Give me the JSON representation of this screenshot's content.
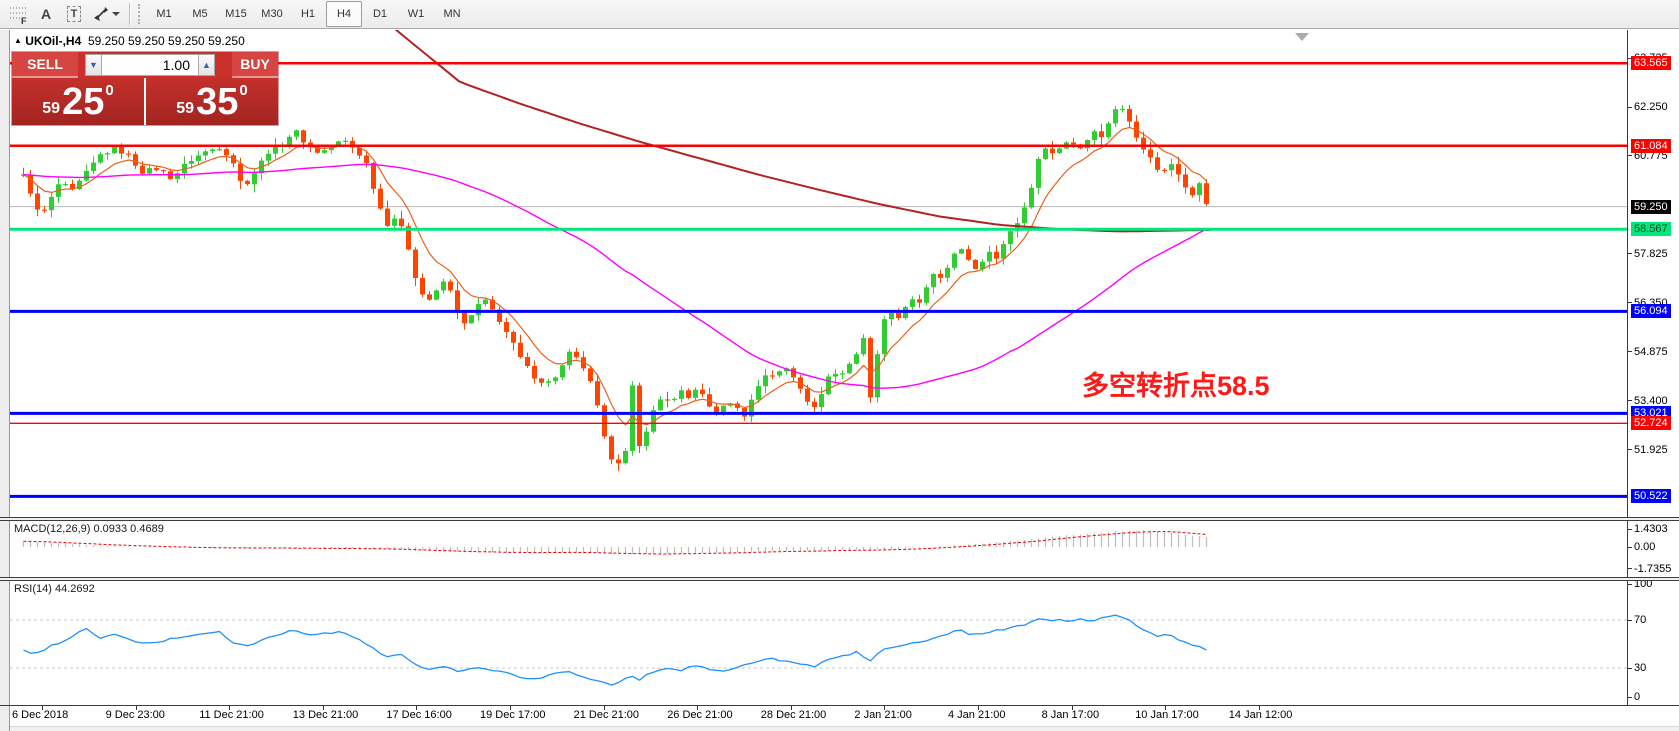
{
  "toolbar": {
    "tools": [
      {
        "name": "fibonacci-tool",
        "glyph": "F"
      },
      {
        "name": "text-tool",
        "glyph": "A"
      },
      {
        "name": "label-tool",
        "glyph": "T"
      },
      {
        "name": "arrows-tool",
        "glyph": "arrow"
      }
    ],
    "timeframes": [
      "M1",
      "M5",
      "M15",
      "M30",
      "H1",
      "H4",
      "D1",
      "W1",
      "MN"
    ],
    "active_timeframe": "H4"
  },
  "chart": {
    "symbol": "UKOil-,H4",
    "quotes": "59.250 59.250 59.250 59.250",
    "annotation": "多空转折点58.5",
    "annotation_color": "#FF1A1A"
  },
  "trade_panel": {
    "sell_label": "SELL",
    "buy_label": "BUY",
    "volume": "1.00",
    "sell_price": {
      "small": "59",
      "big": "25",
      "sup": "0"
    },
    "buy_price": {
      "small": "59",
      "big": "35",
      "sup": "0"
    }
  },
  "price_axis": {
    "ticks": [
      {
        "label": "63.725",
        "price": 63.725
      },
      {
        "label": "62.250",
        "price": 62.25
      },
      {
        "label": "60.775",
        "price": 60.775
      },
      {
        "label": "57.825",
        "price": 57.825
      },
      {
        "label": "56.350",
        "price": 56.35
      },
      {
        "label": "54.875",
        "price": 54.875
      },
      {
        "label": "53.400",
        "price": 53.4
      },
      {
        "label": "51.925",
        "price": 51.925
      }
    ],
    "badges": [
      {
        "label": "63.565",
        "price": 63.565,
        "bg": "#FF0000",
        "fg": "#FFFFFF"
      },
      {
        "label": "61.084",
        "price": 61.084,
        "bg": "#FF0000",
        "fg": "#FFFFFF"
      },
      {
        "label": "59.250",
        "price": 59.25,
        "bg": "#000000",
        "fg": "#FFFFFF"
      },
      {
        "label": "58.567",
        "price": 58.567,
        "bg": "#00E87C",
        "fg": "#143D28"
      },
      {
        "label": "56.094",
        "price": 56.094,
        "bg": "#0000FF",
        "fg": "#FFFFFF"
      },
      {
        "label": "53.021",
        "price": 53.021,
        "bg": "#0000FF",
        "fg": "#FFFFFF"
      },
      {
        "label": "52.724",
        "price": 52.724,
        "bg": "#FF0000",
        "fg": "#FFFFFF"
      },
      {
        "label": "50.522",
        "price": 50.522,
        "bg": "#0000FF",
        "fg": "#FFFFFF"
      }
    ]
  },
  "macd_panel": {
    "header": "MACD(12,26,9) 0.0933 0.4689",
    "scale": [
      {
        "label": "1.4303",
        "value": 1.4303
      },
      {
        "label": "0.00",
        "value": 0
      },
      {
        "label": "-1.7355",
        "value": -1.7355
      }
    ]
  },
  "rsi_panel": {
    "header": "RSI(14) 44.2692",
    "scale": [
      {
        "label": "100",
        "value": 100
      },
      {
        "label": "70",
        "value": 70
      },
      {
        "label": "30",
        "value": 30
      },
      {
        "label": "0",
        "value": 0
      }
    ]
  },
  "date_axis": {
    "labels": [
      "6 Dec 2018",
      "9 Dec 23:00",
      "11 Dec 21:00",
      "13 Dec 21:00",
      "17 Dec 16:00",
      "19 Dec 17:00",
      "21 Dec 21:00",
      "26 Dec 21:00",
      "28 Dec 21:00",
      "2 Jan 21:00",
      "4 Jan 21:00",
      "8 Jan 17:00",
      "10 Jan 17:00",
      "14 Jan 12:00"
    ]
  },
  "chart_data": {
    "type": "candlestick",
    "symbol": "UKOil-",
    "timeframe": "H4",
    "last_price": 59.25,
    "visible_price_range": [
      50.45,
      63.725
    ],
    "up_color": "#32CD32",
    "down_color": "#FF4500",
    "current_price_line": {
      "price": 59.25,
      "color": "#B8B8B8"
    },
    "hlines": [
      {
        "price": 63.565,
        "color": "#FF0000",
        "width": 2.5
      },
      {
        "price": 61.084,
        "color": "#FF0000",
        "width": 2.5
      },
      {
        "price": 58.567,
        "color": "#00E87C",
        "width": 3
      },
      {
        "price": 56.094,
        "color": "#0000FF",
        "width": 3
      },
      {
        "price": 53.021,
        "color": "#0000FF",
        "width": 3
      },
      {
        "price": 52.724,
        "color": "#FF0000",
        "width": 1.3
      },
      {
        "price": 50.522,
        "color": "#0000FF",
        "width": 3
      }
    ],
    "close_path_anchors": [
      [
        10,
        60.4
      ],
      [
        22,
        59.6
      ],
      [
        30,
        58.9
      ],
      [
        38,
        59.3
      ],
      [
        50,
        60.0
      ],
      [
        62,
        59.7
      ],
      [
        75,
        60.2
      ],
      [
        90,
        60.8
      ],
      [
        105,
        61.0
      ],
      [
        118,
        60.8
      ],
      [
        132,
        60.3
      ],
      [
        148,
        60.4
      ],
      [
        162,
        60.1
      ],
      [
        178,
        60.6
      ],
      [
        195,
        60.9
      ],
      [
        210,
        61.05
      ],
      [
        222,
        60.7
      ],
      [
        233,
        59.8
      ],
      [
        245,
        60.3
      ],
      [
        258,
        60.9
      ],
      [
        272,
        61.15
      ],
      [
        285,
        61.55
      ],
      [
        297,
        61.1
      ],
      [
        310,
        60.85
      ],
      [
        322,
        61.1
      ],
      [
        334,
        61.25
      ],
      [
        346,
        60.95
      ],
      [
        356,
        60.6
      ],
      [
        366,
        59.6
      ],
      [
        376,
        58.7
      ],
      [
        386,
        58.95
      ],
      [
        396,
        58.3
      ],
      [
        406,
        57.1
      ],
      [
        416,
        56.35
      ],
      [
        426,
        56.65
      ],
      [
        436,
        57.1
      ],
      [
        446,
        56.2
      ],
      [
        456,
        55.6
      ],
      [
        466,
        56.25
      ],
      [
        476,
        56.4
      ],
      [
        488,
        55.9
      ],
      [
        500,
        55.3
      ],
      [
        512,
        54.6
      ],
      [
        524,
        54.15
      ],
      [
        536,
        53.9
      ],
      [
        548,
        54.2
      ],
      [
        560,
        54.85
      ],
      [
        572,
        54.5
      ],
      [
        584,
        53.7
      ],
      [
        594,
        52.3
      ],
      [
        604,
        51.5
      ],
      [
        612,
        51.65
      ],
      [
        618,
        52.0
      ],
      [
        623,
        54.0
      ],
      [
        628,
        51.9
      ],
      [
        636,
        52.5
      ],
      [
        645,
        53.2
      ],
      [
        654,
        53.6
      ],
      [
        662,
        53.3
      ],
      [
        670,
        53.7
      ],
      [
        678,
        53.45
      ],
      [
        686,
        53.8
      ],
      [
        694,
        53.5
      ],
      [
        702,
        53.1
      ],
      [
        710,
        53.0
      ],
      [
        718,
        53.45
      ],
      [
        726,
        53.2
      ],
      [
        734,
        52.95
      ],
      [
        742,
        53.45
      ],
      [
        750,
        53.95
      ],
      [
        758,
        54.3
      ],
      [
        766,
        54.1
      ],
      [
        774,
        54.45
      ],
      [
        782,
        54.2
      ],
      [
        790,
        53.85
      ],
      [
        798,
        53.4
      ],
      [
        806,
        53.1
      ],
      [
        814,
        53.9
      ],
      [
        822,
        54.3
      ],
      [
        830,
        54.1
      ],
      [
        838,
        54.5
      ],
      [
        846,
        54.75
      ],
      [
        852,
        55.6
      ],
      [
        858,
        54.2
      ],
      [
        862,
        53.2
      ],
      [
        868,
        54.9
      ],
      [
        874,
        55.9
      ],
      [
        880,
        56.15
      ],
      [
        886,
        55.8
      ],
      [
        893,
        56.1
      ],
      [
        900,
        56.5
      ],
      [
        908,
        56.2
      ],
      [
        916,
        56.8
      ],
      [
        924,
        57.2
      ],
      [
        932,
        57.0
      ],
      [
        940,
        57.6
      ],
      [
        948,
        58.1
      ],
      [
        956,
        57.7
      ],
      [
        964,
        57.35
      ],
      [
        972,
        57.6
      ],
      [
        980,
        57.95
      ],
      [
        988,
        57.7
      ],
      [
        996,
        58.3
      ],
      [
        1004,
        58.6
      ],
      [
        1012,
        59.0
      ],
      [
        1020,
        59.7
      ],
      [
        1028,
        60.6
      ],
      [
        1036,
        61.1
      ],
      [
        1044,
        60.8
      ],
      [
        1052,
        61.1
      ],
      [
        1060,
        61.3
      ],
      [
        1068,
        60.95
      ],
      [
        1076,
        61.2
      ],
      [
        1084,
        61.6
      ],
      [
        1092,
        61.3
      ],
      [
        1100,
        61.9
      ],
      [
        1108,
        62.35
      ],
      [
        1114,
        62.1
      ],
      [
        1120,
        61.8
      ],
      [
        1128,
        61.3
      ],
      [
        1136,
        60.9
      ],
      [
        1144,
        60.55
      ],
      [
        1152,
        60.2
      ],
      [
        1160,
        60.6
      ],
      [
        1168,
        60.3
      ],
      [
        1176,
        59.85
      ],
      [
        1184,
        59.6
      ],
      [
        1190,
        59.95
      ],
      [
        1197,
        59.3
      ]
    ],
    "ma_fast": {
      "type": "EMA",
      "period": 8,
      "color": "#E8611C"
    },
    "ma_medium": {
      "type": "SMA",
      "period": 55,
      "color": "#FF00FF"
    },
    "ma_slow": {
      "color": "#B22222",
      "anchors": [
        [
          385,
          64.6
        ],
        [
          450,
          63.0
        ],
        [
          510,
          62.35
        ],
        [
          570,
          61.75
        ],
        [
          630,
          61.2
        ],
        [
          690,
          60.7
        ],
        [
          750,
          60.2
        ],
        [
          810,
          59.75
        ],
        [
          870,
          59.32
        ],
        [
          930,
          58.95
        ],
        [
          990,
          58.7
        ],
        [
          1050,
          58.57
        ],
        [
          1110,
          58.5
        ],
        [
          1205,
          58.55
        ]
      ]
    },
    "macd": {
      "histogram_color": "#BEBEBE",
      "signal_color": "#F00000",
      "scale_max": 1.4303,
      "scale_min": -1.7355,
      "anchors": [
        [
          10,
          0.45
        ],
        [
          50,
          0.28
        ],
        [
          90,
          0.12
        ],
        [
          130,
          0.02
        ],
        [
          170,
          -0.06
        ],
        [
          210,
          -0.1
        ],
        [
          250,
          -0.07
        ],
        [
          290,
          -0.1
        ],
        [
          330,
          -0.12
        ],
        [
          365,
          -0.16
        ],
        [
          400,
          -0.26
        ],
        [
          440,
          -0.38
        ],
        [
          480,
          -0.44
        ],
        [
          520,
          -0.46
        ],
        [
          550,
          -0.41
        ],
        [
          580,
          -0.46
        ],
        [
          610,
          -0.56
        ],
        [
          640,
          -0.6
        ],
        [
          670,
          -0.52
        ],
        [
          700,
          -0.46
        ],
        [
          730,
          -0.4
        ],
        [
          760,
          -0.33
        ],
        [
          790,
          -0.29
        ],
        [
          820,
          -0.26
        ],
        [
          850,
          -0.24
        ],
        [
          880,
          -0.18
        ],
        [
          910,
          -0.06
        ],
        [
          940,
          0.1
        ],
        [
          970,
          0.26
        ],
        [
          1000,
          0.46
        ],
        [
          1030,
          0.7
        ],
        [
          1060,
          0.95
        ],
        [
          1090,
          1.15
        ],
        [
          1115,
          1.28
        ],
        [
          1140,
          1.34
        ],
        [
          1160,
          1.18
        ],
        [
          1180,
          0.92
        ],
        [
          1197,
          0.78
        ]
      ]
    },
    "rsi": {
      "color": "#1E90FF",
      "levels": [
        70,
        30
      ],
      "last_value": 44.2692,
      "anchors": [
        [
          10,
          47
        ],
        [
          25,
          41
        ],
        [
          40,
          48
        ],
        [
          60,
          55
        ],
        [
          75,
          63
        ],
        [
          90,
          55
        ],
        [
          105,
          58
        ],
        [
          120,
          53
        ],
        [
          135,
          50
        ],
        [
          150,
          52
        ],
        [
          165,
          55
        ],
        [
          180,
          57
        ],
        [
          195,
          59
        ],
        [
          210,
          60
        ],
        [
          225,
          50
        ],
        [
          240,
          48
        ],
        [
          255,
          55
        ],
        [
          270,
          58
        ],
        [
          285,
          62
        ],
        [
          300,
          57
        ],
        [
          315,
          59
        ],
        [
          330,
          60
        ],
        [
          345,
          56
        ],
        [
          360,
          48
        ],
        [
          375,
          39
        ],
        [
          390,
          42
        ],
        [
          405,
          33
        ],
        [
          420,
          28
        ],
        [
          435,
          32
        ],
        [
          450,
          26
        ],
        [
          465,
          31
        ],
        [
          480,
          29
        ],
        [
          495,
          26
        ],
        [
          510,
          22
        ],
        [
          525,
          21
        ],
        [
          540,
          24
        ],
        [
          555,
          28
        ],
        [
          570,
          24
        ],
        [
          585,
          20
        ],
        [
          600,
          16
        ],
        [
          612,
          19
        ],
        [
          620,
          24
        ],
        [
          628,
          19
        ],
        [
          640,
          26
        ],
        [
          655,
          30
        ],
        [
          670,
          28
        ],
        [
          685,
          32
        ],
        [
          700,
          29
        ],
        [
          715,
          28
        ],
        [
          730,
          31
        ],
        [
          745,
          35
        ],
        [
          760,
          38
        ],
        [
          775,
          36
        ],
        [
          790,
          33
        ],
        [
          805,
          31
        ],
        [
          820,
          38
        ],
        [
          835,
          40
        ],
        [
          850,
          44
        ],
        [
          858,
          34
        ],
        [
          868,
          43
        ],
        [
          880,
          47
        ],
        [
          895,
          50
        ],
        [
          910,
          52
        ],
        [
          925,
          55
        ],
        [
          940,
          59
        ],
        [
          950,
          62
        ],
        [
          960,
          57
        ],
        [
          972,
          59
        ],
        [
          985,
          61
        ],
        [
          1000,
          63
        ],
        [
          1015,
          66
        ],
        [
          1030,
          71
        ],
        [
          1040,
          69
        ],
        [
          1050,
          71
        ],
        [
          1060,
          68
        ],
        [
          1070,
          71
        ],
        [
          1080,
          69
        ],
        [
          1090,
          71
        ],
        [
          1100,
          73
        ],
        [
          1110,
          74
        ],
        [
          1118,
          70
        ],
        [
          1128,
          64
        ],
        [
          1138,
          60
        ],
        [
          1148,
          56
        ],
        [
          1158,
          58
        ],
        [
          1168,
          54
        ],
        [
          1178,
          51
        ],
        [
          1188,
          48
        ],
        [
          1197,
          44.3
        ]
      ]
    }
  }
}
